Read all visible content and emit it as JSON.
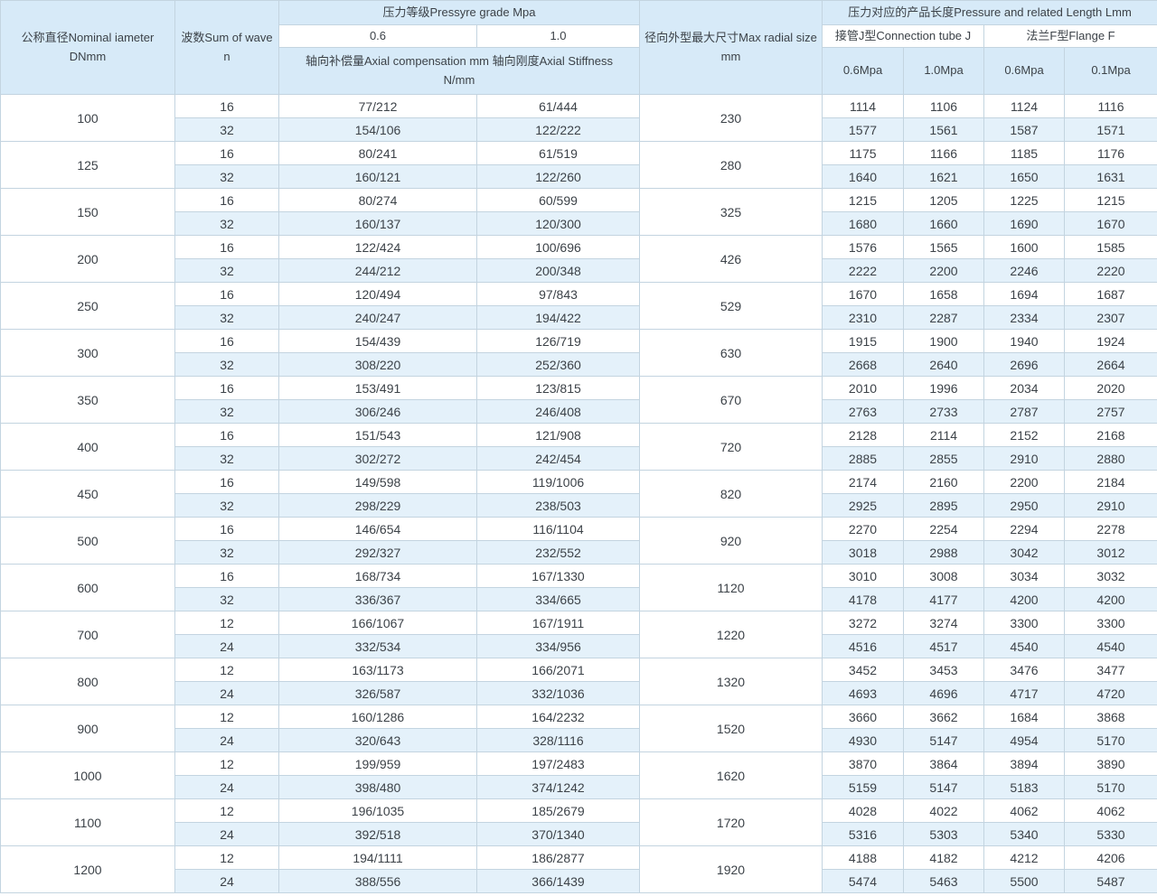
{
  "colors": {
    "header_bg": "#d7eaf8",
    "alt_row_bg": "#e4f1fa",
    "border": "#c3d4e0",
    "border_strong": "#9db2c1",
    "text": "#3c4248"
  },
  "table": {
    "headers": {
      "col_diameter": "公称直径Nominal iameter\nDNmm",
      "col_wave": "波数Sum of wave\nn",
      "pressure_grade": "压力等级Pressyre grade Mpa",
      "grade_06": "0.6",
      "grade_10": "1.0",
      "axial": "轴向补偿量Axial compensation mm 轴向刚度Axial Stiffness\nN/mm",
      "radial": "径向外型最大尺寸Max radial size\nmm",
      "length_group": "压力对应的产品长度Pressure and related Length Lmm",
      "tube_group": "接管J型Connection tube J",
      "flange_group": "法兰F型Flange F",
      "tube_06": "0.6Mpa",
      "tube_10": "1.0Mpa",
      "flange_06": "0.6Mpa",
      "flange_01": "0.1Mpa"
    },
    "groups": [
      {
        "dn": "100",
        "radial": "230",
        "rows": [
          {
            "n": "16",
            "c06": "77/212",
            "c10": "61/444",
            "t06": "1114",
            "t10": "1106",
            "f06": "1124",
            "f01": "1116"
          },
          {
            "n": "32",
            "c06": "154/106",
            "c10": "122/222",
            "t06": "1577",
            "t10": "1561",
            "f06": "1587",
            "f01": "1571"
          }
        ]
      },
      {
        "dn": "125",
        "radial": "280",
        "rows": [
          {
            "n": "16",
            "c06": "80/241",
            "c10": "61/519",
            "t06": "1175",
            "t10": "1166",
            "f06": "1185",
            "f01": "1176"
          },
          {
            "n": "32",
            "c06": "160/121",
            "c10": "122/260",
            "t06": "1640",
            "t10": "1621",
            "f06": "1650",
            "f01": "1631"
          }
        ]
      },
      {
        "dn": "150",
        "radial": "325",
        "rows": [
          {
            "n": "16",
            "c06": "80/274",
            "c10": "60/599",
            "t06": "1215",
            "t10": "1205",
            "f06": "1225",
            "f01": "1215"
          },
          {
            "n": "32",
            "c06": "160/137",
            "c10": "120/300",
            "t06": "1680",
            "t10": "1660",
            "f06": "1690",
            "f01": "1670"
          }
        ]
      },
      {
        "dn": "200",
        "radial": "426",
        "rows": [
          {
            "n": "16",
            "c06": "122/424",
            "c10": "100/696",
            "t06": "1576",
            "t10": "1565",
            "f06": "1600",
            "f01": "1585"
          },
          {
            "n": "32",
            "c06": "244/212",
            "c10": "200/348",
            "t06": "2222",
            "t10": "2200",
            "f06": "2246",
            "f01": "2220"
          }
        ]
      },
      {
        "dn": "250",
        "radial": "529",
        "rows": [
          {
            "n": "16",
            "c06": "120/494",
            "c10": "97/843",
            "t06": "1670",
            "t10": "1658",
            "f06": "1694",
            "f01": "1687"
          },
          {
            "n": "32",
            "c06": "240/247",
            "c10": "194/422",
            "t06": "2310",
            "t10": "2287",
            "f06": "2334",
            "f01": "2307"
          }
        ]
      },
      {
        "dn": "300",
        "radial": "630",
        "rows": [
          {
            "n": "16",
            "c06": "154/439",
            "c10": "126/719",
            "t06": "1915",
            "t10": "1900",
            "f06": "1940",
            "f01": "1924"
          },
          {
            "n": "32",
            "c06": "308/220",
            "c10": "252/360",
            "t06": "2668",
            "t10": "2640",
            "f06": "2696",
            "f01": "2664"
          }
        ]
      },
      {
        "dn": "350",
        "radial": "670",
        "rows": [
          {
            "n": "16",
            "c06": "153/491",
            "c10": "123/815",
            "t06": "2010",
            "t10": "1996",
            "f06": "2034",
            "f01": "2020"
          },
          {
            "n": "32",
            "c06": "306/246",
            "c10": "246/408",
            "t06": "2763",
            "t10": "2733",
            "f06": "2787",
            "f01": "2757"
          }
        ]
      },
      {
        "dn": "400",
        "radial": "720",
        "rows": [
          {
            "n": "16",
            "c06": "151/543",
            "c10": "121/908",
            "t06": "2128",
            "t10": "2114",
            "f06": "2152",
            "f01": "2168"
          },
          {
            "n": "32",
            "c06": "302/272",
            "c10": "242/454",
            "t06": "2885",
            "t10": "2855",
            "f06": "2910",
            "f01": "2880"
          }
        ]
      },
      {
        "dn": "450",
        "radial": "820",
        "rows": [
          {
            "n": "16",
            "c06": "149/598",
            "c10": "119/1006",
            "t06": "2174",
            "t10": "2160",
            "f06": "2200",
            "f01": "2184"
          },
          {
            "n": "32",
            "c06": "298/229",
            "c10": "238/503",
            "t06": "2925",
            "t10": "2895",
            "f06": "2950",
            "f01": "2910"
          }
        ]
      },
      {
        "dn": "500",
        "radial": "920",
        "rows": [
          {
            "n": "16",
            "c06": "146/654",
            "c10": "116/1104",
            "t06": "2270",
            "t10": "2254",
            "f06": "2294",
            "f01": "2278"
          },
          {
            "n": "32",
            "c06": "292/327",
            "c10": "232/552",
            "t06": "3018",
            "t10": "2988",
            "f06": "3042",
            "f01": "3012"
          }
        ]
      },
      {
        "dn": "600",
        "radial": "1120",
        "rows": [
          {
            "n": "16",
            "c06": "168/734",
            "c10": "167/1330",
            "t06": "3010",
            "t10": "3008",
            "f06": "3034",
            "f01": "3032"
          },
          {
            "n": "32",
            "c06": "336/367",
            "c10": "334/665",
            "t06": "4178",
            "t10": "4177",
            "f06": "4200",
            "f01": "4200"
          }
        ]
      },
      {
        "dn": "700",
        "radial": "1220",
        "rows": [
          {
            "n": "12",
            "c06": "166/1067",
            "c10": "167/1911",
            "t06": "3272",
            "t10": "3274",
            "f06": "3300",
            "f01": "3300"
          },
          {
            "n": "24",
            "c06": "332/534",
            "c10": "334/956",
            "t06": "4516",
            "t10": "4517",
            "f06": "4540",
            "f01": "4540"
          }
        ]
      },
      {
        "dn": "800",
        "radial": "1320",
        "rows": [
          {
            "n": "12",
            "c06": "163/1173",
            "c10": "166/2071",
            "t06": "3452",
            "t10": "3453",
            "f06": "3476",
            "f01": "3477"
          },
          {
            "n": "24",
            "c06": "326/587",
            "c10": "332/1036",
            "t06": "4693",
            "t10": "4696",
            "f06": "4717",
            "f01": "4720"
          }
        ]
      },
      {
        "dn": "900",
        "radial": "1520",
        "rows": [
          {
            "n": "12",
            "c06": "160/1286",
            "c10": "164/2232",
            "t06": "3660",
            "t10": "3662",
            "f06": "1684",
            "f01": "3868"
          },
          {
            "n": "24",
            "c06": "320/643",
            "c10": "328/1116",
            "t06": "4930",
            "t10": "5147",
            "f06": "4954",
            "f01": "5170"
          }
        ]
      },
      {
        "dn": "1000",
        "radial": "1620",
        "rows": [
          {
            "n": "12",
            "c06": "199/959",
            "c10": "197/2483",
            "t06": "3870",
            "t10": "3864",
            "f06": "3894",
            "f01": "3890"
          },
          {
            "n": "24",
            "c06": "398/480",
            "c10": "374/1242",
            "t06": "5159",
            "t10": "5147",
            "f06": "5183",
            "f01": "5170"
          }
        ]
      },
      {
        "dn": "1100",
        "radial": "1720",
        "rows": [
          {
            "n": "12",
            "c06": "196/1035",
            "c10": "185/2679",
            "t06": "4028",
            "t10": "4022",
            "f06": "4062",
            "f01": "4062"
          },
          {
            "n": "24",
            "c06": "392/518",
            "c10": "370/1340",
            "t06": "5316",
            "t10": "5303",
            "f06": "5340",
            "f01": "5330"
          }
        ]
      },
      {
        "dn": "1200",
        "radial": "1920",
        "rows": [
          {
            "n": "12",
            "c06": "194/1111",
            "c10": "186/2877",
            "t06": "4188",
            "t10": "4182",
            "f06": "4212",
            "f01": "4206"
          },
          {
            "n": "24",
            "c06": "388/556",
            "c10": "366/1439",
            "t06": "5474",
            "t10": "5463",
            "f06": "5500",
            "f01": "5487"
          }
        ]
      }
    ]
  }
}
